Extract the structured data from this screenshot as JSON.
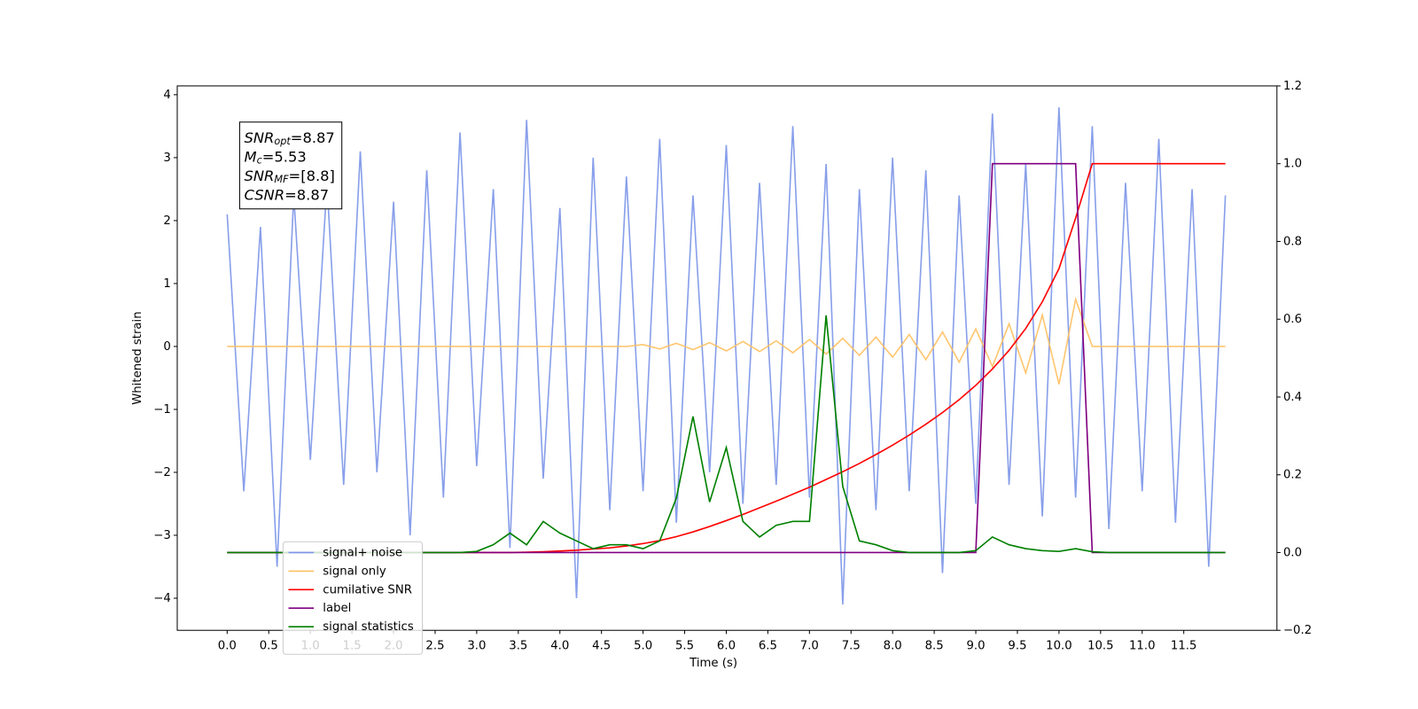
{
  "chart_data": {
    "type": "line",
    "xlabel": "Time (s)",
    "ylabel": "Whitened strain",
    "annotation": [
      [
        "SNR",
        "opt",
        "=8.87"
      ],
      [
        "M",
        "c",
        "=5.53"
      ],
      [
        "SNR",
        "MF",
        "=[8.8]"
      ],
      [
        "CSNR",
        "",
        "=8.87"
      ]
    ],
    "xlim": [
      -0.6,
      12.62
    ],
    "ylim": [
      -4.51,
      4.14
    ],
    "y2lim": [
      -0.2,
      1.2
    ],
    "xticks": [
      {
        "value": 0,
        "label": "0.0"
      },
      {
        "value": 0.5,
        "label": "0.5"
      },
      {
        "value": 1,
        "label": "1.0"
      },
      {
        "value": 1.5,
        "label": "1.5"
      },
      {
        "value": 2,
        "label": "2.0"
      },
      {
        "value": 2.5,
        "label": "2.5"
      },
      {
        "value": 3,
        "label": "3.0"
      },
      {
        "value": 3.5,
        "label": "3.5"
      },
      {
        "value": 4,
        "label": "4.0"
      },
      {
        "value": 4.5,
        "label": "4.5"
      },
      {
        "value": 5,
        "label": "5.0"
      },
      {
        "value": 5.5,
        "label": "5.5"
      },
      {
        "value": 6,
        "label": "6.0"
      },
      {
        "value": 6.5,
        "label": "6.5"
      },
      {
        "value": 7,
        "label": "7.0"
      },
      {
        "value": 7.5,
        "label": "7.5"
      },
      {
        "value": 8,
        "label": "8.0"
      },
      {
        "value": 8.5,
        "label": "8.5"
      },
      {
        "value": 9,
        "label": "9.0"
      },
      {
        "value": 9.5,
        "label": "9.5"
      },
      {
        "value": 10,
        "label": "10.0"
      },
      {
        "value": 10.5,
        "label": "10.5"
      },
      {
        "value": 11,
        "label": "11.0"
      },
      {
        "value": 11.5,
        "label": "11.5"
      }
    ],
    "yticks": [
      {
        "value": -4,
        "label": "−4"
      },
      {
        "value": -3,
        "label": "−3"
      },
      {
        "value": -2,
        "label": "−2"
      },
      {
        "value": -1,
        "label": "−1"
      },
      0,
      1,
      2,
      3,
      4
    ],
    "y2ticks": [
      {
        "value": -0.2,
        "label": "−0.2"
      },
      {
        "value": 0,
        "label": "0.0"
      },
      0.2,
      0.4,
      0.6,
      0.8,
      {
        "value": 1,
        "label": "1.0"
      },
      1.2
    ],
    "legend": "lower left",
    "x": [
      0,
      0.2,
      0.4,
      0.6,
      0.8,
      1,
      1.2,
      1.4,
      1.6,
      1.8,
      2,
      2.2,
      2.4,
      2.6,
      2.8,
      3,
      3.2,
      3.4,
      3.6,
      3.8,
      4,
      4.2,
      4.4,
      4.6,
      4.8,
      5,
      5.2,
      5.4,
      5.6,
      5.8,
      6,
      6.2,
      6.4,
      6.6,
      6.8,
      7,
      7.2,
      7.4,
      7.6,
      7.8,
      8,
      8.2,
      8.4,
      8.6,
      8.8,
      9,
      9.2,
      9.4,
      9.6,
      9.8,
      10,
      10.2,
      10.4,
      10.6,
      10.8,
      11,
      11.2,
      11.4,
      11.6,
      11.8,
      12
    ],
    "series": [
      {
        "name": "signal+ noise",
        "color": "#7b95e8",
        "values": [
          2.1,
          -2.3,
          1.9,
          -3.5,
          2.4,
          -1.8,
          2.6,
          -2.2,
          3.1,
          -2.0,
          2.3,
          -3.0,
          2.8,
          -2.4,
          3.4,
          -1.9,
          2.5,
          -3.2,
          3.6,
          -2.1,
          2.2,
          -4.0,
          3.0,
          -2.6,
          2.7,
          -2.3,
          3.3,
          -2.8,
          2.4,
          -2.0,
          3.2,
          -2.5,
          2.6,
          -2.2,
          3.5,
          -2.4,
          2.9,
          -4.1,
          2.5,
          -2.6,
          3.0,
          -2.3,
          2.8,
          -3.6,
          2.4,
          -2.5,
          3.7,
          -2.2,
          2.9,
          -2.7,
          3.8,
          -2.4,
          3.5,
          -2.9,
          2.6,
          -2.3,
          3.3,
          -2.8,
          2.5,
          -3.5,
          2.4
        ]
      },
      {
        "name": "signal only",
        "color": "#ffc060",
        "values": [
          0,
          0,
          0,
          0,
          0,
          0,
          0,
          0,
          0,
          0,
          0,
          0,
          0,
          0,
          0,
          0,
          0,
          0,
          0,
          0,
          0,
          0,
          0,
          0,
          0,
          0.03,
          -0.04,
          0.05,
          -0.05,
          0.06,
          -0.07,
          0.08,
          -0.08,
          0.09,
          -0.1,
          0.11,
          -0.12,
          0.13,
          -0.14,
          0.15,
          -0.17,
          0.19,
          -0.21,
          0.23,
          -0.25,
          0.28,
          -0.32,
          0.36,
          -0.42,
          0.5,
          -0.6,
          0.75,
          0,
          0,
          0,
          0,
          0,
          0,
          0,
          0,
          0
        ]
      },
      {
        "name": "cumilative SNR",
        "color": "#ff0000",
        "axis": "y2",
        "values": [
          0,
          0,
          0,
          0,
          0,
          0,
          0,
          0,
          0,
          0,
          0,
          0,
          0,
          0,
          0,
          0,
          0,
          0,
          0.001,
          0.002,
          0.004,
          0.006,
          0.009,
          0.012,
          0.017,
          0.023,
          0.031,
          0.041,
          0.053,
          0.067,
          0.082,
          0.098,
          0.115,
          0.132,
          0.15,
          0.168,
          0.188,
          0.208,
          0.229,
          0.252,
          0.276,
          0.302,
          0.33,
          0.36,
          0.393,
          0.43,
          0.472,
          0.52,
          0.576,
          0.645,
          0.73,
          0.86,
          1,
          1,
          1,
          1,
          1,
          1,
          1,
          1,
          1
        ]
      },
      {
        "name": "label",
        "color": "#800080",
        "axis": "y2",
        "values": [
          0,
          0,
          0,
          0,
          0,
          0,
          0,
          0,
          0,
          0,
          0,
          0,
          0,
          0,
          0,
          0,
          0,
          0,
          0,
          0,
          0,
          0,
          0,
          0,
          0,
          0,
          0,
          0,
          0,
          0,
          0,
          0,
          0,
          0,
          0,
          0,
          0,
          0,
          0,
          0,
          0,
          0,
          0,
          0,
          0,
          0,
          1,
          1,
          1,
          1,
          1,
          1,
          0,
          0,
          0,
          0,
          0,
          0,
          0,
          0,
          0
        ]
      },
      {
        "name": "signal statistics",
        "color": "#008000",
        "axis": "y2",
        "values": [
          0,
          0,
          0,
          0,
          0,
          0,
          0,
          0,
          0,
          0,
          0,
          0,
          0,
          0,
          0,
          0.003,
          0.02,
          0.05,
          0.02,
          0.08,
          0.05,
          0.03,
          0.01,
          0.02,
          0.02,
          0.01,
          0.03,
          0.14,
          0.35,
          0.13,
          0.27,
          0.08,
          0.04,
          0.07,
          0.08,
          0.08,
          0.61,
          0.17,
          0.03,
          0.02,
          0.005,
          0,
          0,
          0,
          0,
          0.005,
          0.04,
          0.02,
          0.01,
          0.005,
          0.003,
          0.01,
          0.002,
          0,
          0,
          0,
          0,
          0,
          0,
          0,
          0
        ]
      }
    ]
  }
}
